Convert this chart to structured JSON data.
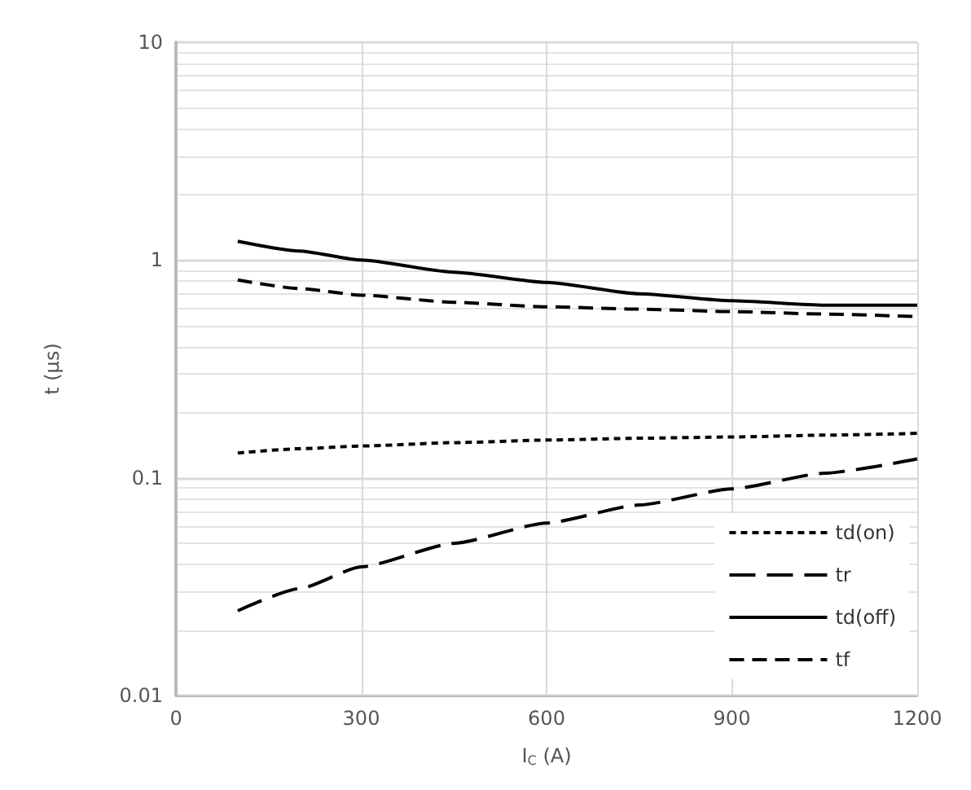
{
  "chart_data": {
    "type": "line",
    "xlabel": "I$_{C}$ (A)",
    "ylabel": "t (µs)",
    "log": "y",
    "xlim": [
      0,
      1200
    ],
    "xticks": [
      0,
      300,
      600,
      900,
      1200
    ],
    "ylim": [
      0.01,
      10
    ],
    "yticks": [
      0.01,
      0.1,
      1,
      10
    ],
    "grid": true,
    "legend": "bottom right",
    "marker": "none",
    "x": [
      100,
      200,
      300,
      450,
      600,
      750,
      900,
      1050,
      1200
    ],
    "series": [
      {
        "name": "td(on)",
        "color": "#000000",
        "line_style": "dotted",
        "values": [
          0.13,
          0.136,
          0.14,
          0.145,
          0.149,
          0.152,
          0.154,
          0.157,
          0.16
        ]
      },
      {
        "name": "tr",
        "color": "#000000",
        "line_style": "dashed",
        "values": [
          0.0245,
          0.031,
          0.039,
          0.05,
          0.062,
          0.075,
          0.089,
          0.105,
          0.122
        ]
      },
      {
        "name": "td(off)",
        "color": "#000000",
        "line_style": "solid",
        "values": [
          1.22,
          1.1,
          1.0,
          0.88,
          0.79,
          0.7,
          0.65,
          0.62,
          0.62
        ]
      },
      {
        "name": "tf",
        "color": "#000000",
        "line_style": "dashed",
        "values": [
          0.81,
          0.74,
          0.69,
          0.64,
          0.61,
          0.595,
          0.58,
          0.565,
          0.55
        ]
      }
    ]
  }
}
